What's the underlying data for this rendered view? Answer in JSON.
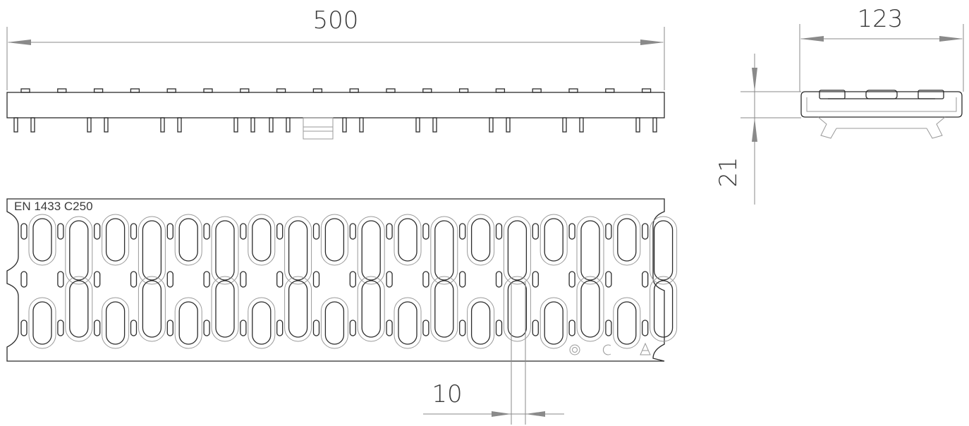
{
  "drawing": {
    "dimensions": {
      "length": "500",
      "width": "123",
      "height": "21",
      "slot_width": "10"
    },
    "grate_marking": "EN  1433 C250",
    "certification_marks": [
      "o",
      "c",
      "a"
    ],
    "colors": {
      "line": "#2b2b2b",
      "light_line": "#9a9a9a",
      "dimension_line": "#8a8a8a",
      "text": "#3a3a3a"
    }
  }
}
